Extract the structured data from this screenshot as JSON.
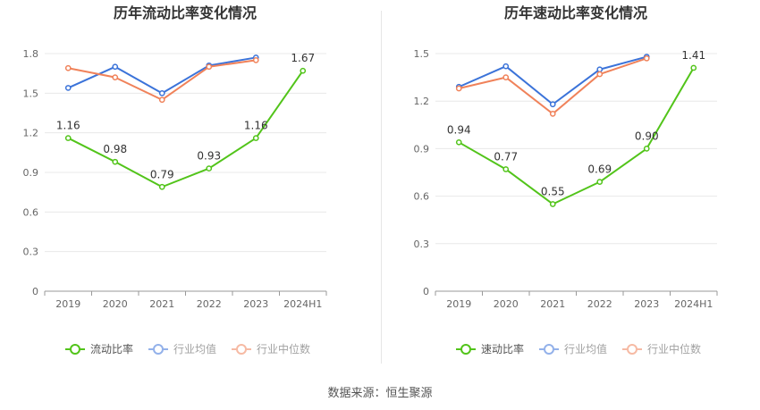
{
  "source": "数据来源：恒生聚源",
  "colors": {
    "main": "#52c41a",
    "avg": "#3b73d9",
    "median": "#f0825a",
    "grid": "#e8e8e8",
    "axis_text": "#666666",
    "title": "#333333",
    "legend_text": "#555555"
  },
  "chart_data": [
    {
      "type": "line",
      "title": "历年流动比率变化情况",
      "categories": [
        "2019",
        "2020",
        "2021",
        "2022",
        "2023",
        "2024H1"
      ],
      "ylim": [
        0,
        1.8
      ],
      "yticks": [
        "0",
        "0.3",
        "0.6",
        "0.9",
        "1.2",
        "1.5",
        "1.8"
      ],
      "legend_position": "bottom",
      "series": [
        {
          "name": "流动比率",
          "role": "main",
          "values": [
            1.16,
            0.98,
            0.79,
            0.93,
            1.16,
            1.67
          ],
          "labels": [
            "1.16",
            "0.98",
            "0.79",
            "0.93",
            "1.16",
            "1.67"
          ]
        },
        {
          "name": "行业均值",
          "role": "avg",
          "values": [
            1.54,
            1.7,
            1.5,
            1.71,
            1.77,
            null
          ]
        },
        {
          "name": "行业中位数",
          "role": "median",
          "values": [
            1.69,
            1.62,
            1.45,
            1.7,
            1.75,
            null
          ]
        }
      ]
    },
    {
      "type": "line",
      "title": "历年速动比率变化情况",
      "categories": [
        "2019",
        "2020",
        "2021",
        "2022",
        "2023",
        "2024H1"
      ],
      "ylim": [
        0,
        1.5
      ],
      "yticks": [
        "0",
        "0.3",
        "0.6",
        "0.9",
        "1.2",
        "1.5"
      ],
      "legend_position": "bottom",
      "series": [
        {
          "name": "速动比率",
          "role": "main",
          "values": [
            0.94,
            0.77,
            0.55,
            0.69,
            0.9,
            1.41
          ],
          "labels": [
            "0.94",
            "0.77",
            "0.55",
            "0.69",
            "0.90",
            "1.41"
          ]
        },
        {
          "name": "行业均值",
          "role": "avg",
          "values": [
            1.29,
            1.42,
            1.18,
            1.4,
            1.48,
            null
          ]
        },
        {
          "name": "行业中位数",
          "role": "median",
          "values": [
            1.28,
            1.35,
            1.12,
            1.37,
            1.47,
            null
          ]
        }
      ]
    }
  ]
}
